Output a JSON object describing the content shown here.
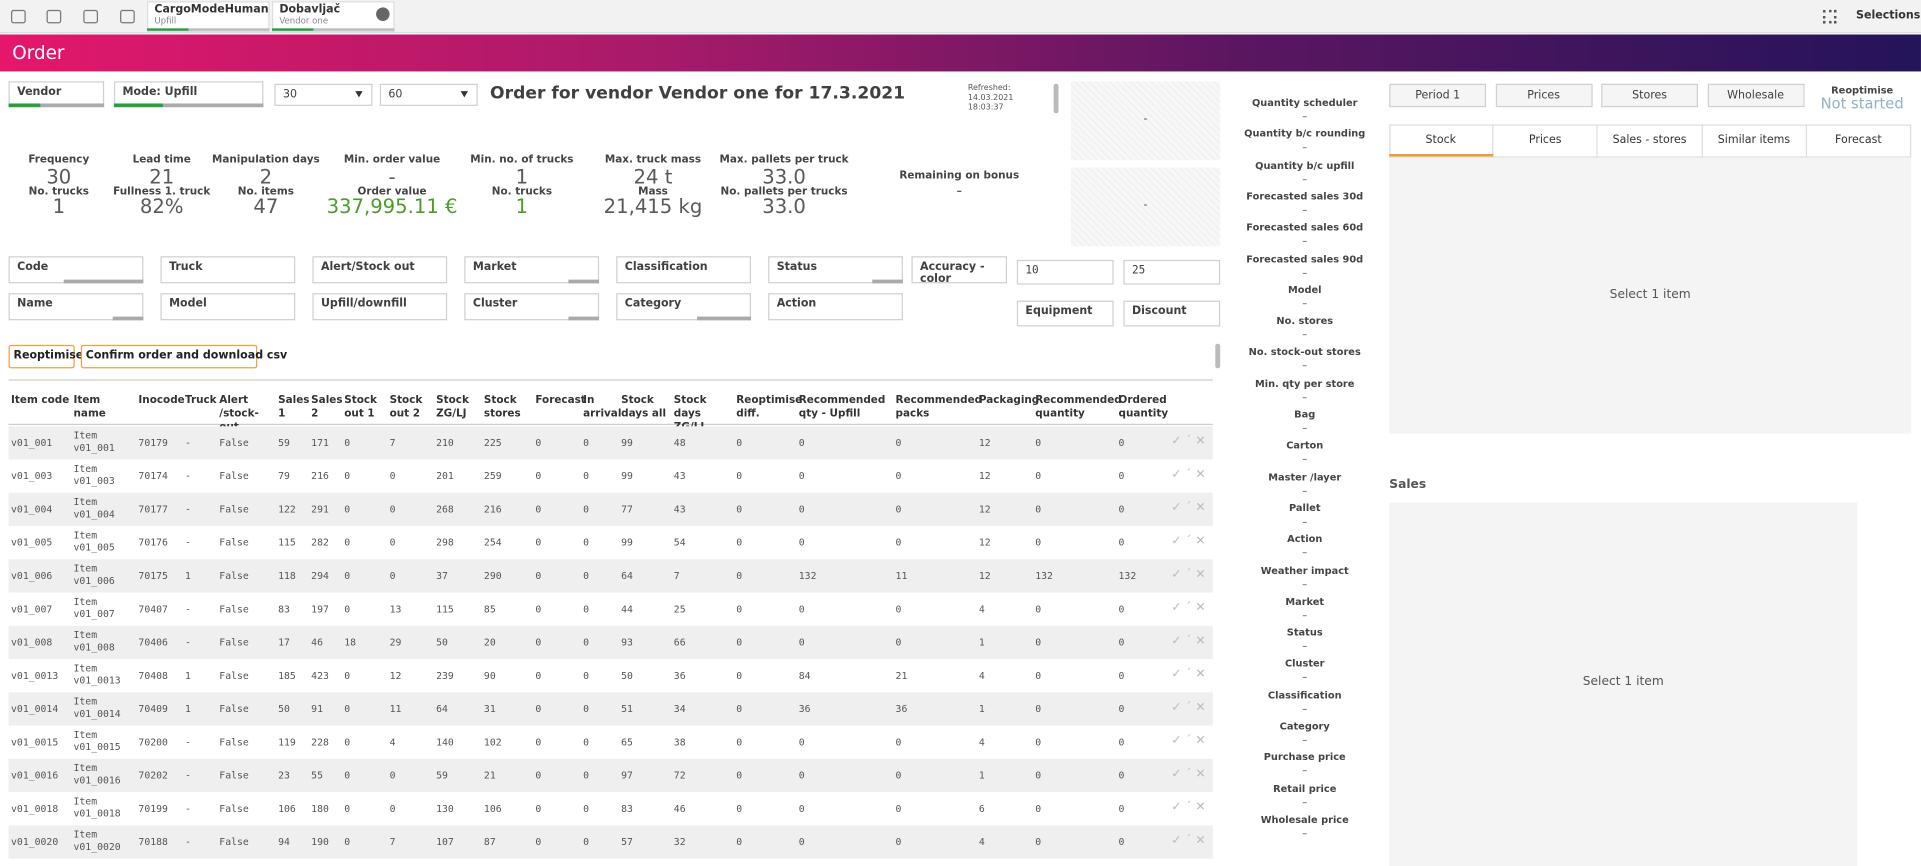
{
  "toolbar": {
    "tabs": [
      {
        "title": "CargoModeHuman",
        "subtitle": "Upfill"
      },
      {
        "title": "Dobavljač",
        "subtitle": "Vendor one"
      }
    ],
    "selections": "Selections"
  },
  "header": {
    "title": "Order"
  },
  "controls": {
    "vendor": "Vendor",
    "mode": "Mode: Upfill",
    "dropdowns": [
      "30",
      "60"
    ],
    "order_title": "Order for vendor Vendor one for 17.3.2021",
    "refreshed": [
      "Refreshed:",
      "14.03.2021",
      "18:03:37"
    ],
    "placeholders": [
      "-",
      "-"
    ]
  },
  "kpis": [
    {
      "label": "Frequency",
      "value": "30",
      "label2": "No. trucks",
      "value2": "1"
    },
    {
      "label": "Lead time",
      "value": "21",
      "label2": "Fullness 1. truck",
      "value2": "82%"
    },
    {
      "label": "Manipulation days",
      "value": "2",
      "label2": "No. items",
      "value2": "47"
    },
    {
      "label": "Min. order value",
      "value": "-",
      "label2": "Order value",
      "value2": "337,995.11 €"
    },
    {
      "label": "Min. no. of trucks",
      "value": "1",
      "label2": "No. trucks",
      "value2": "1"
    },
    {
      "label": "Max. truck mass",
      "value": "24 t",
      "label2": "Mass",
      "value2": "21,415 kg"
    },
    {
      "label": "Max. pallets per truck",
      "value": "33.0",
      "label2": "No. pallets per trucks",
      "value2": "33.0"
    },
    {
      "label": "Remaining on bonus",
      "value": "-"
    }
  ],
  "filters": {
    "row1": [
      "Code",
      "Truck",
      "Alert/Stock out",
      "Market",
      "Classification",
      "Status",
      "Accuracy - color"
    ],
    "inputs": [
      "10",
      "25"
    ],
    "row2": [
      "Name",
      "Model",
      "Upfill/downfill",
      "Cluster",
      "Category",
      "Action"
    ],
    "row2_right": [
      "Equipment",
      "Discount"
    ]
  },
  "buttons": [
    "Reoptimise",
    "Confirm order and download csv"
  ],
  "table": {
    "columns": [
      "Item code",
      "Item name",
      "Inocode",
      "Truck",
      "Alert /stock-out",
      "Sales 1",
      "Sales 2",
      "Stock out 1",
      "Stock out 2",
      "Stock ZG/LJ",
      "Stock stores",
      "Forecast",
      "In arrival",
      "Stock days all",
      "Stock days ZG/LJ",
      "Reoptimise diff.",
      "Recommended qty - Upfill",
      "Recommended packs",
      "Packaging",
      "Recommended quantity",
      "Ordered quantity"
    ],
    "rows": [
      [
        "v01_001",
        "Item v01_001",
        "70179",
        "-",
        "False",
        "59",
        "171",
        "0",
        "7",
        "210",
        "225",
        "0",
        "0",
        "99",
        "48",
        "0",
        "0",
        "0",
        "12",
        "0",
        "0"
      ],
      [
        "v01_003",
        "Item v01_003",
        "70174",
        "-",
        "False",
        "79",
        "216",
        "0",
        "0",
        "201",
        "259",
        "0",
        "0",
        "99",
        "43",
        "0",
        "0",
        "0",
        "12",
        "0",
        "0"
      ],
      [
        "v01_004",
        "Item v01_004",
        "70177",
        "-",
        "False",
        "122",
        "291",
        "0",
        "0",
        "268",
        "216",
        "0",
        "0",
        "77",
        "43",
        "0",
        "0",
        "0",
        "12",
        "0",
        "0"
      ],
      [
        "v01_005",
        "Item v01_005",
        "70176",
        "-",
        "False",
        "115",
        "282",
        "0",
        "0",
        "298",
        "254",
        "0",
        "0",
        "99",
        "54",
        "0",
        "0",
        "0",
        "12",
        "0",
        "0"
      ],
      [
        "v01_006",
        "Item v01_006",
        "70175",
        "1",
        "False",
        "118",
        "294",
        "0",
        "0",
        "37",
        "290",
        "0",
        "0",
        "64",
        "7",
        "0",
        "132",
        "11",
        "12",
        "132",
        "132"
      ],
      [
        "v01_007",
        "Item v01_007",
        "70407",
        "-",
        "False",
        "83",
        "197",
        "0",
        "13",
        "115",
        "85",
        "0",
        "0",
        "44",
        "25",
        "0",
        "0",
        "0",
        "4",
        "0",
        "0"
      ],
      [
        "v01_008",
        "Item v01_008",
        "70406",
        "-",
        "False",
        "17",
        "46",
        "18",
        "29",
        "50",
        "20",
        "0",
        "0",
        "93",
        "66",
        "0",
        "0",
        "0",
        "1",
        "0",
        "0"
      ],
      [
        "v01_0013",
        "Item v01_0013",
        "70408",
        "1",
        "False",
        "185",
        "423",
        "0",
        "12",
        "239",
        "90",
        "0",
        "0",
        "50",
        "36",
        "0",
        "84",
        "21",
        "4",
        "0",
        "0"
      ],
      [
        "v01_0014",
        "Item v01_0014",
        "70409",
        "1",
        "False",
        "50",
        "91",
        "0",
        "11",
        "64",
        "31",
        "0",
        "0",
        "51",
        "34",
        "0",
        "36",
        "36",
        "1",
        "0",
        "0"
      ],
      [
        "v01_0015",
        "Item v01_0015",
        "70200",
        "-",
        "False",
        "119",
        "228",
        "0",
        "4",
        "140",
        "102",
        "0",
        "0",
        "65",
        "38",
        "0",
        "0",
        "0",
        "4",
        "0",
        "0"
      ],
      [
        "v01_0016",
        "Item v01_0016",
        "70202",
        "-",
        "False",
        "23",
        "55",
        "0",
        "0",
        "59",
        "21",
        "0",
        "0",
        "97",
        "72",
        "0",
        "0",
        "0",
        "1",
        "0",
        "0"
      ],
      [
        "v01_0018",
        "Item v01_0018",
        "70199",
        "-",
        "False",
        "106",
        "180",
        "0",
        "0",
        "130",
        "106",
        "0",
        "0",
        "83",
        "46",
        "0",
        "0",
        "0",
        "6",
        "0",
        "0"
      ],
      [
        "v01_0020",
        "Item v01_0020",
        "70188",
        "-",
        "False",
        "94",
        "190",
        "0",
        "7",
        "107",
        "87",
        "0",
        "0",
        "57",
        "32",
        "0",
        "0",
        "0",
        "4",
        "0",
        "0"
      ]
    ]
  },
  "fields": [
    {
      "label": "Quantity scheduler",
      "value": "–"
    },
    {
      "label": "Quantity b/c rounding",
      "value": "–"
    },
    {
      "label": "Quantity b/c upfill",
      "value": "–"
    },
    {
      "label": "Forecasted sales 30d",
      "value": "–"
    },
    {
      "label": "Forecasted sales 60d",
      "value": "–"
    },
    {
      "label": "Forecasted sales 90d",
      "value": "–"
    },
    {
      "label": "Model",
      "value": "–"
    },
    {
      "label": "No. stores",
      "value": "–"
    },
    {
      "label": "No. stock-out stores",
      "value": "–"
    },
    {
      "label": "Min. qty per store",
      "value": "–"
    },
    {
      "label": "Bag",
      "value": "–"
    },
    {
      "label": "Carton",
      "value": "–"
    },
    {
      "label": "Master /layer",
      "value": "–"
    },
    {
      "label": "Pallet",
      "value": "–"
    },
    {
      "label": "Action",
      "value": "–"
    },
    {
      "label": "Weather impact",
      "value": "–"
    },
    {
      "label": "Market",
      "value": "–"
    },
    {
      "label": "Status",
      "value": "–"
    },
    {
      "label": "Cluster",
      "value": "–"
    },
    {
      "label": "Classification",
      "value": "–"
    },
    {
      "label": "Category",
      "value": "–"
    },
    {
      "label": "Purchase price",
      "value": "–"
    },
    {
      "label": "Retail price",
      "value": "–"
    },
    {
      "label": "Wholesale price",
      "value": "–"
    }
  ],
  "right": {
    "buttons": [
      "Period 1",
      "Prices",
      "Stores",
      "Wholesale"
    ],
    "reoptimise_label": "Reoptimise",
    "reoptimise_status": "Not started",
    "tabs": [
      "Stock",
      "Prices",
      "Sales - stores",
      "Similar items",
      "Forecast"
    ],
    "stock_empty": "Select 1 item",
    "sales_title": "Sales",
    "sales_empty": "Select 1 item"
  }
}
